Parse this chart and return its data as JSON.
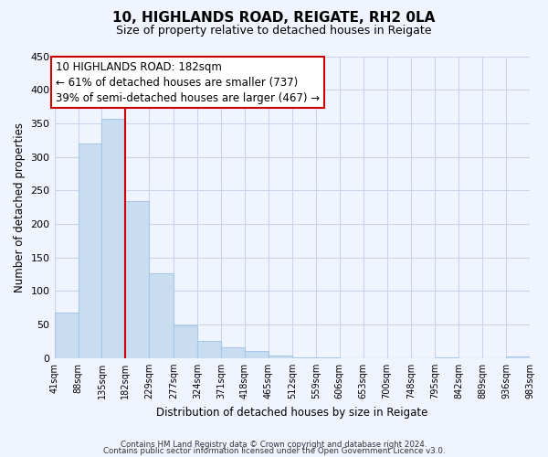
{
  "title": "10, HIGHLANDS ROAD, REIGATE, RH2 0LA",
  "subtitle": "Size of property relative to detached houses in Reigate",
  "xlabel": "Distribution of detached houses by size in Reigate",
  "ylabel": "Number of detached properties",
  "bar_color": "#c8ddf0",
  "bar_edge_color": "#a8c8e8",
  "vline_color": "#cc0000",
  "vline_x": 182,
  "bin_edges": [
    41,
    88,
    135,
    182,
    229,
    277,
    324,
    371,
    418,
    465,
    512,
    559,
    606,
    653,
    700,
    748,
    795,
    842,
    889,
    936,
    983
  ],
  "bar_heights": [
    68,
    320,
    357,
    234,
    126,
    49,
    25,
    16,
    11,
    4,
    1,
    1,
    0,
    0,
    0,
    0,
    1,
    0,
    0,
    2
  ],
  "ylim": [
    0,
    450
  ],
  "yticks": [
    0,
    50,
    100,
    150,
    200,
    250,
    300,
    350,
    400,
    450
  ],
  "annotation_line1": "10 HIGHLANDS ROAD: 182sqm",
  "annotation_line2": "← 61% of detached houses are smaller (737)",
  "annotation_line3": "39% of semi-detached houses are larger (467) →",
  "annotation_box_color": "white",
  "annotation_box_edge": "#cc0000",
  "footer_line1": "Contains HM Land Registry data © Crown copyright and database right 2024.",
  "footer_line2": "Contains public sector information licensed under the Open Government Licence v3.0.",
  "background_color": "#f0f4ff",
  "grid_color": "#c8d4ec"
}
